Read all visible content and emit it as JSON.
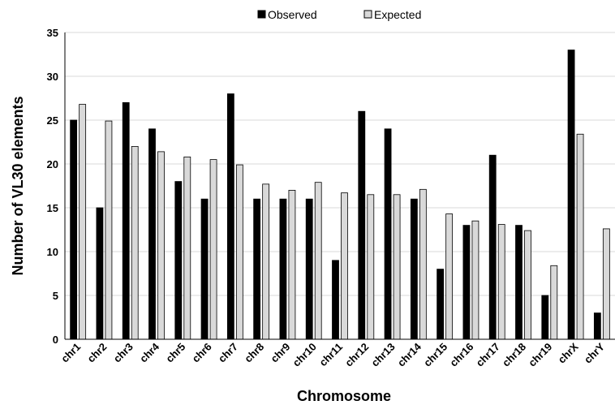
{
  "chart_data": {
    "type": "bar",
    "title": "",
    "xlabel": "Chromosome",
    "ylabel": "Number of VL30 elements",
    "ylim": [
      0,
      35
    ],
    "yticks": [
      0,
      5,
      10,
      15,
      20,
      25,
      30,
      35
    ],
    "grid": true,
    "legend_position": "top-center",
    "categories": [
      "chr1",
      "chr2",
      "chr3",
      "chr4",
      "chr5",
      "chr6",
      "chr7",
      "chr8",
      "chr9",
      "chr10",
      "chr11",
      "chr12",
      "chr13",
      "chr14",
      "chr15",
      "chr16",
      "chr17",
      "chr18",
      "chr19",
      "chrX",
      "chrY"
    ],
    "series": [
      {
        "name": "Observed",
        "color": "#000000",
        "values": [
          25,
          15,
          27,
          24,
          18,
          16,
          28,
          16,
          16,
          16,
          9,
          26,
          24,
          16,
          8,
          13,
          21,
          13,
          5,
          33,
          3
        ]
      },
      {
        "name": "Expected",
        "color": "#d9d9d9",
        "values": [
          26.8,
          24.9,
          22,
          21.4,
          20.8,
          20.5,
          19.9,
          17.7,
          17,
          17.9,
          16.7,
          16.5,
          16.5,
          17.1,
          14.3,
          13.5,
          13.1,
          12.4,
          8.4,
          23.4,
          12.6
        ]
      }
    ]
  }
}
